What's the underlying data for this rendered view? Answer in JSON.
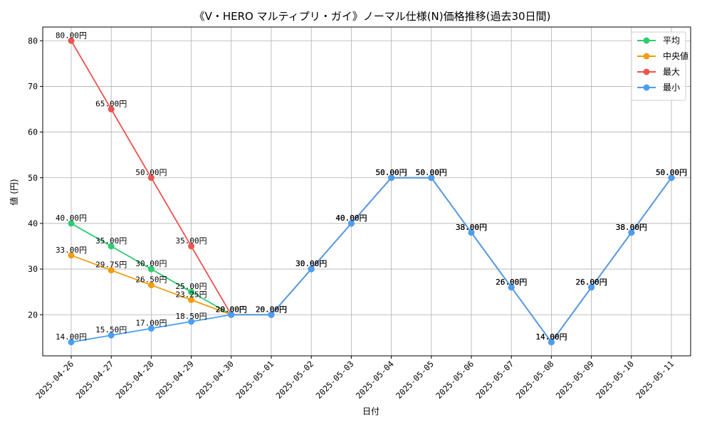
{
  "chart_data": {
    "type": "line",
    "title": "《V・HERO マルティプリ・ガイ》ノーマル仕様(N)価格推移(過去30日間)",
    "xlabel": "日付",
    "ylabel": "値 (円)",
    "ylim": [
      11,
      83
    ],
    "yticks": [
      20,
      30,
      40,
      50,
      60,
      70,
      80
    ],
    "grid": true,
    "legend_position": "top-right",
    "categories": [
      "2025-04-26",
      "2025-04-27",
      "2025-04-28",
      "2025-04-29",
      "2025-04-30",
      "2025-05-01",
      "2025-05-02",
      "2025-05-03",
      "2025-05-04",
      "2025-05-05",
      "2025-05-06",
      "2025-05-07",
      "2025-05-08",
      "2025-05-09",
      "2025-05-10",
      "2025-05-11"
    ],
    "label_suffix": "円",
    "series": [
      {
        "name": "平均",
        "color": "#2ecc71",
        "values": [
          40,
          35,
          30,
          25,
          20,
          20,
          30,
          40,
          50,
          50,
          38,
          26,
          14,
          26,
          38,
          50
        ]
      },
      {
        "name": "中央値",
        "color": "#f39c12",
        "values": [
          33,
          29.75,
          26.5,
          23.25,
          20,
          20,
          30,
          40,
          50,
          50,
          38,
          26,
          14,
          26,
          38,
          50
        ]
      },
      {
        "name": "最大",
        "color": "#ef5350",
        "values": [
          80,
          65,
          50,
          35,
          20,
          20,
          30,
          40,
          50,
          50,
          38,
          26,
          14,
          26,
          38,
          50
        ]
      },
      {
        "name": "最小",
        "color": "#4a9ef5",
        "values": [
          14,
          15.5,
          17,
          18.5,
          20,
          20,
          30,
          40,
          50,
          50,
          38,
          26,
          14,
          26,
          38,
          50
        ]
      }
    ]
  }
}
